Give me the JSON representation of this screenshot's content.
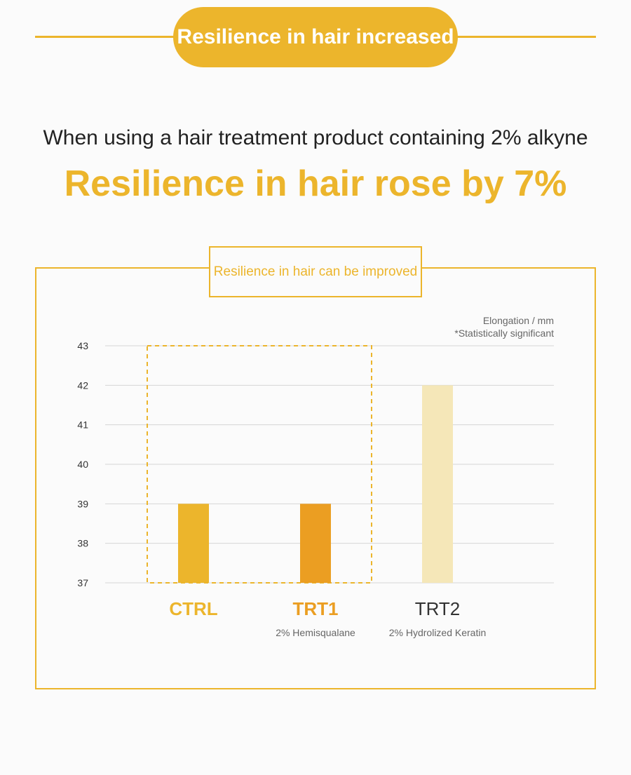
{
  "header": {
    "title": "Resilience in hair increased"
  },
  "intro": {
    "subtitle": "When using a hair treatment product containing 2% alkyne",
    "headline": "Resilience in hair rose by 7%"
  },
  "panel": {
    "label": "Resilience in hair can be improved",
    "unit_label": "Elongation / mm",
    "note": "*Statistically significant"
  },
  "colors": {
    "accent": "#ecb52c",
    "ctrl": "#ecb52c",
    "trt1": "#eb9e22",
    "trt2": "#f5e7b8",
    "grid": "#d6d6d6"
  },
  "chart_data": {
    "type": "bar",
    "categories": [
      "CTRL",
      "TRT1",
      "TRT2"
    ],
    "category_subtitles": [
      "",
      "2% Hemisqualane",
      "2% Hydrolized Keratin"
    ],
    "values": [
      39,
      39,
      42
    ],
    "ylabel": "Elongation / mm",
    "ylim": [
      37,
      43
    ],
    "yticks": [
      37,
      38,
      39,
      40,
      41,
      42,
      43
    ],
    "grid": true,
    "highlight": [
      "CTRL",
      "TRT1"
    ]
  }
}
